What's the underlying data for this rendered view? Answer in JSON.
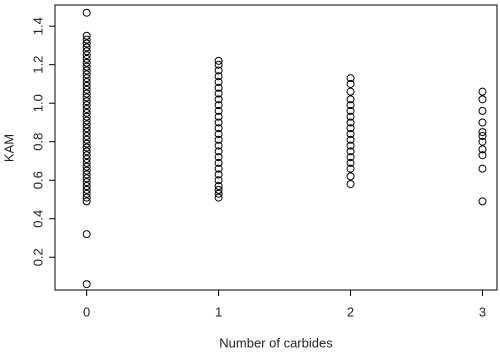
{
  "chart_data": {
    "type": "scatter",
    "xlabel": "Number of carbides",
    "ylabel": "KAM",
    "x": [
      0,
      0,
      0,
      0,
      0,
      0,
      0,
      0,
      0,
      0,
      0,
      0,
      0,
      0,
      0,
      0,
      0,
      0,
      0,
      0,
      0,
      0,
      0,
      0,
      0,
      0,
      0,
      0,
      0,
      0,
      0,
      0,
      0,
      0,
      0,
      0,
      0,
      0,
      0,
      0,
      0,
      0,
      0,
      0,
      0,
      0,
      0,
      1,
      1,
      1,
      1,
      1,
      1,
      1,
      1,
      1,
      1,
      1,
      1,
      1,
      1,
      1,
      1,
      1,
      1,
      1,
      1,
      1,
      1,
      1,
      1,
      1,
      1,
      2,
      2,
      2,
      2,
      2,
      2,
      2,
      2,
      2,
      2,
      2,
      2,
      2,
      2,
      2,
      2,
      2,
      2,
      3,
      3,
      3,
      3,
      3,
      3,
      3,
      3,
      3,
      3,
      3
    ],
    "values": [
      0.06,
      0.32,
      0.49,
      0.51,
      0.53,
      0.55,
      0.57,
      0.59,
      0.61,
      0.63,
      0.65,
      0.67,
      0.69,
      0.71,
      0.73,
      0.75,
      0.77,
      0.79,
      0.81,
      0.83,
      0.85,
      0.87,
      0.89,
      0.91,
      0.93,
      0.95,
      0.97,
      0.99,
      1.01,
      1.03,
      1.05,
      1.07,
      1.09,
      1.11,
      1.13,
      1.15,
      1.17,
      1.19,
      1.21,
      1.23,
      1.25,
      1.27,
      1.29,
      1.31,
      1.33,
      1.35,
      1.47,
      0.51,
      0.53,
      0.55,
      0.57,
      0.6,
      0.63,
      0.66,
      0.69,
      0.72,
      0.75,
      0.78,
      0.81,
      0.84,
      0.87,
      0.9,
      0.93,
      0.96,
      0.99,
      1.02,
      1.05,
      1.08,
      1.11,
      1.14,
      1.17,
      1.2,
      1.22,
      0.58,
      0.62,
      0.66,
      0.69,
      0.72,
      0.75,
      0.78,
      0.81,
      0.84,
      0.87,
      0.9,
      0.93,
      0.96,
      0.99,
      1.02,
      1.06,
      1.1,
      1.13,
      0.49,
      0.66,
      0.73,
      0.76,
      0.8,
      0.83,
      0.85,
      0.9,
      0.96,
      1.02,
      1.06
    ],
    "color": "#000000",
    "xlim": [
      -0.24,
      3.11
    ],
    "xticks": [
      0,
      1,
      2,
      3
    ],
    "ylim": [
      0.03,
      1.51
    ],
    "yticks": [
      0.2,
      0.4,
      0.6,
      0.8,
      {
        "value": 1,
        "label": "1.0"
      },
      1.2,
      1.4
    ]
  }
}
